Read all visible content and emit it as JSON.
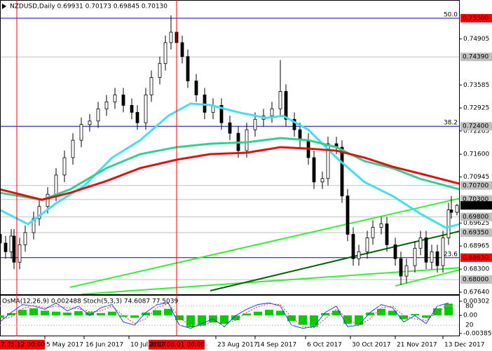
{
  "chart_data": [
    {
      "type": "candlestick",
      "title": "NZDUSD,Daily  0.69931 0.70173 0.69845 0.70130",
      "xlim": [
        0,
        164
      ],
      "ylim": [
        0.6758,
        0.76023
      ],
      "x": [
        0,
        2,
        4,
        5,
        7,
        9,
        12,
        14,
        17,
        20,
        23,
        26,
        29,
        32,
        35,
        38,
        41,
        44,
        47,
        49,
        52,
        54,
        57,
        59,
        61,
        63,
        65,
        67,
        70,
        73,
        76,
        79,
        82,
        85,
        88,
        91,
        94,
        97,
        100,
        102,
        105,
        107,
        110,
        112,
        115,
        117,
        120,
        122,
        124,
        126,
        128,
        131,
        133,
        136,
        138,
        141,
        143,
        145,
        148,
        150,
        152,
        154,
        156,
        158,
        160,
        161,
        163
      ],
      "open": [
        0.693,
        0.6905,
        0.688,
        0.6925,
        0.685,
        0.69,
        0.6935,
        0.6975,
        0.701,
        0.7045,
        0.71,
        0.715,
        0.72,
        0.7245,
        0.7255,
        0.729,
        0.731,
        0.733,
        0.73,
        0.728,
        0.725,
        0.733,
        0.738,
        0.742,
        0.748,
        0.751,
        0.748,
        0.744,
        0.737,
        0.733,
        0.728,
        0.73,
        0.725,
        0.722,
        0.717,
        0.723,
        0.726,
        0.727,
        0.729,
        0.734,
        0.726,
        0.723,
        0.72,
        0.715,
        0.708,
        0.709,
        0.719,
        0.718,
        0.704,
        0.693,
        0.686,
        0.688,
        0.692,
        0.695,
        0.696,
        0.69,
        0.686,
        0.681,
        0.684,
        0.689,
        0.692,
        0.685,
        0.688,
        0.684,
        0.692,
        0.7,
        0.69931
      ],
      "high": [
        0.695,
        0.6925,
        0.6945,
        0.6945,
        0.692,
        0.6955,
        0.6995,
        0.703,
        0.7065,
        0.712,
        0.717,
        0.722,
        0.7265,
        0.7275,
        0.731,
        0.733,
        0.735,
        0.735,
        0.732,
        0.73,
        0.735,
        0.74,
        0.744,
        0.75,
        0.7558,
        0.753,
        0.75,
        0.746,
        0.739,
        0.735,
        0.732,
        0.732,
        0.727,
        0.724,
        0.725,
        0.728,
        0.729,
        0.731,
        0.743,
        0.736,
        0.728,
        0.725,
        0.722,
        0.717,
        0.711,
        0.721,
        0.721,
        0.72,
        0.706,
        0.695,
        0.69,
        0.694,
        0.697,
        0.698,
        0.698,
        0.692,
        0.688,
        0.686,
        0.691,
        0.694,
        0.694,
        0.69,
        0.69,
        0.694,
        0.702,
        0.704,
        0.70173
      ],
      "low": [
        0.6885,
        0.686,
        0.686,
        0.683,
        0.683,
        0.688,
        0.6915,
        0.6955,
        0.699,
        0.7025,
        0.708,
        0.713,
        0.718,
        0.7225,
        0.7235,
        0.727,
        0.729,
        0.728,
        0.726,
        0.723,
        0.723,
        0.731,
        0.736,
        0.74,
        0.746,
        0.746,
        0.742,
        0.735,
        0.731,
        0.726,
        0.726,
        0.723,
        0.72,
        0.715,
        0.715,
        0.721,
        0.724,
        0.725,
        0.727,
        0.724,
        0.721,
        0.718,
        0.713,
        0.706,
        0.706,
        0.707,
        0.716,
        0.702,
        0.691,
        0.684,
        0.684,
        0.686,
        0.69,
        0.693,
        0.688,
        0.684,
        0.6785,
        0.679,
        0.682,
        0.687,
        0.683,
        0.683,
        0.682,
        0.682,
        0.69,
        0.6975,
        0.69845
      ],
      "close": [
        0.6905,
        0.688,
        0.6925,
        0.685,
        0.69,
        0.6935,
        0.6975,
        0.701,
        0.7045,
        0.71,
        0.715,
        0.72,
        0.7245,
        0.7255,
        0.729,
        0.731,
        0.733,
        0.73,
        0.728,
        0.725,
        0.733,
        0.738,
        0.742,
        0.748,
        0.751,
        0.748,
        0.744,
        0.737,
        0.733,
        0.728,
        0.73,
        0.725,
        0.722,
        0.717,
        0.723,
        0.726,
        0.727,
        0.729,
        0.734,
        0.726,
        0.723,
        0.72,
        0.715,
        0.708,
        0.709,
        0.719,
        0.718,
        0.704,
        0.693,
        0.686,
        0.688,
        0.692,
        0.695,
        0.696,
        0.69,
        0.686,
        0.681,
        0.684,
        0.689,
        0.692,
        0.685,
        0.688,
        0.684,
        0.692,
        0.7,
        0.6993,
        0.7013
      ],
      "candle_color": "#000000",
      "series": [
        {
          "color": "#40e0f0",
          "x": [
            0,
            10,
            20,
            30,
            40,
            50,
            60,
            68,
            75,
            85,
            95,
            101,
            110,
            120,
            130,
            140,
            150,
            159,
            164
          ],
          "values": [
            0.7,
            0.6959,
            0.7019,
            0.7069,
            0.715,
            0.72,
            0.727,
            0.7305,
            0.7301,
            0.728,
            0.7264,
            0.727,
            0.723,
            0.715,
            0.708,
            0.704,
            0.6989,
            0.6949,
            0.6959
          ]
        },
        {
          "color": "#30d090",
          "x": [
            0,
            15,
            25,
            38,
            50,
            63,
            75,
            88,
            100,
            110,
            120,
            130,
            140,
            150,
            164
          ],
          "values": [
            0.7049,
            0.7029,
            0.7059,
            0.712,
            0.716,
            0.718,
            0.719,
            0.7194,
            0.7206,
            0.72,
            0.718,
            0.714,
            0.712,
            0.7089,
            0.7059
          ]
        },
        {
          "color": "#e01010",
          "x": [
            0,
            15,
            25,
            38,
            50,
            63,
            75,
            88,
            100,
            110,
            120,
            130,
            140,
            150,
            164
          ],
          "values": [
            0.7059,
            0.7029,
            0.7049,
            0.7083,
            0.712,
            0.7144,
            0.716,
            0.7164,
            0.718,
            0.7176,
            0.717,
            0.715,
            0.7124,
            0.7104,
            0.7075
          ]
        }
      ],
      "trend_lines": [
        {
          "color": "#33ee33",
          "x": [
            25,
            164
          ],
          "values": [
            0.6778,
            0.7033
          ]
        },
        {
          "color": "#33ee33",
          "x": [
            141,
            164
          ],
          "values": [
            0.6782,
            0.6828
          ]
        },
        {
          "color": "#33ee33",
          "x": [
            29,
            164
          ],
          "values": [
            0.6758,
            0.6834
          ]
        },
        {
          "color": "#006400",
          "x": [
            75,
            164
          ],
          "values": [
            0.6768,
            0.6939
          ]
        }
      ],
      "levels": [
        {
          "value": 0.755,
          "label": "0.75500",
          "ratio": "50.0",
          "line": "#0000cc",
          "box": "#ff0000",
          "text": "#ffffff"
        },
        {
          "value": 0.7439,
          "label": "0.74390",
          "line": "#c0c0c0",
          "box": "#c0c0c0",
          "text": "#000000"
        },
        {
          "value": 0.724,
          "label": "0.72400",
          "ratio": "38.2",
          "line": "#0000cc",
          "box": "#c0c0c0",
          "text": "#000000"
        },
        {
          "value": 0.707,
          "label": "0.70700",
          "line": "#c0c0c0",
          "box": "#c0c0c0",
          "text": "#000000"
        },
        {
          "value": 0.703,
          "label": "0.70300",
          "line": "#c0c0c0",
          "box": "#c0c0c0",
          "text": "#000000"
        },
        {
          "value": 0.7013,
          "label": "0.70130",
          "box": "#000000",
          "text": "#ffffff"
        },
        {
          "value": 0.698,
          "label": "0.69800",
          "line": "#c0c0c0",
          "box": "#c0c0c0",
          "text": "#000000"
        },
        {
          "value": 0.6935,
          "label": "0.69350",
          "line": "#c0c0c0",
          "box": "#c0c0c0",
          "text": "#000000"
        },
        {
          "value": 0.6863,
          "label": "0.68630",
          "ratio": "23.6",
          "line": "#0000cc",
          "box": "#ff0000",
          "text": "#ffffff"
        },
        {
          "value": 0.68,
          "label": "0.68000",
          "line": "#c0c0c0",
          "box": "#c0c0c0",
          "text": "#000000"
        }
      ],
      "markers": [
        {
          "x": 6,
          "label": "2017.05.12 00:00",
          "color": "#ff0000"
        },
        {
          "x": 63,
          "label": "2017.08.01 00:00",
          "color": "#ff0000"
        }
      ],
      "yticks": [
        {
          "value": 0.74905,
          "label": "0.74905"
        },
        {
          "value": 0.73585,
          "label": "0.73585"
        },
        {
          "value": 0.72925,
          "label": "0.72925"
        },
        {
          "value": 0.72265,
          "label": "0.72265"
        },
        {
          "value": 0.716,
          "label": "0.71600"
        },
        {
          "value": 0.70945,
          "label": "0.70945"
        },
        {
          "value": 0.69625,
          "label": "0.69625"
        },
        {
          "value": 0.68965,
          "label": "0.68965"
        },
        {
          "value": 0.683,
          "label": "0.68300"
        },
        {
          "value": 0.6764,
          "label": "0.67640"
        }
      ],
      "xticks": [
        {
          "value": 16,
          "label": "5 May 2017"
        },
        {
          "value": 30,
          "label": "16 Jun 2017"
        },
        {
          "value": 46,
          "label": "10 Jul 2017"
        },
        {
          "value": 77,
          "label": "23 Aug 2017"
        },
        {
          "value": 91,
          "label": "14 Sep 2017"
        },
        {
          "value": 109,
          "label": "6 Oct 2017"
        },
        {
          "value": 125,
          "label": "30 Oct 2017"
        },
        {
          "value": 141,
          "label": "21 Nov 2017"
        },
        {
          "value": 158,
          "label": "13 Dec 2017"
        }
      ]
    },
    {
      "type": "oscillator",
      "title": "OsMA(12,26,9) 0.002488 Stoch(5,3,3) 74.6087 77.5039",
      "xlim": [
        0,
        164
      ],
      "ylim": [
        -0.0043,
        0.00421
      ],
      "y2lim": [
        -13,
        113
      ],
      "x": [
        0,
        4,
        8,
        12,
        16,
        20,
        24,
        28,
        32,
        36,
        40,
        44,
        48,
        52,
        56,
        60,
        64,
        68,
        72,
        76,
        80,
        84,
        88,
        92,
        96,
        100,
        104,
        108,
        112,
        116,
        120,
        124,
        128,
        132,
        136,
        140,
        144,
        148,
        152,
        156,
        160
      ],
      "series": [
        {
          "name": "OsMA",
          "color": "#00cc00",
          "values": [
            -0.0005,
            0.0005,
            0.0012,
            0.0015,
            0.001,
            0.0008,
            0.0006,
            0.0009,
            0.0007,
            0.0005,
            0.0008,
            -0.0003,
            -0.0005,
            0.0006,
            0.0011,
            0.0014,
            -0.001,
            -0.0025,
            -0.0022,
            -0.0015,
            -0.0018,
            -0.001,
            0.0004,
            0.0008,
            0.0012,
            0.001,
            -0.0012,
            -0.002,
            -0.0024,
            0.0005,
            0.001,
            -0.0018,
            -0.002,
            0.0006,
            0.0014,
            0.001,
            -0.0008,
            0.0003,
            -0.0005,
            0.0015,
            0.0025
          ]
        },
        {
          "name": "Stoch",
          "color": "#1e3cff",
          "axis": "y2",
          "values": [
            30,
            60,
            85,
            80,
            70,
            90,
            65,
            80,
            50,
            75,
            85,
            30,
            20,
            60,
            85,
            90,
            20,
            10,
            25,
            40,
            15,
            50,
            70,
            85,
            90,
            80,
            20,
            10,
            15,
            60,
            80,
            15,
            20,
            60,
            85,
            75,
            30,
            50,
            25,
            80,
            90
          ]
        },
        {
          "name": "Signal",
          "color": "#ff2020",
          "axis": "y2",
          "values": [
            40,
            45,
            72,
            82,
            75,
            80,
            75,
            72,
            62,
            65,
            80,
            50,
            25,
            40,
            75,
            88,
            45,
            15,
            18,
            32,
            25,
            35,
            60,
            78,
            88,
            85,
            45,
            15,
            12,
            40,
            70,
            40,
            18,
            40,
            75,
            80,
            50,
            40,
            35,
            60,
            85
          ]
        }
      ],
      "yticks": [
        {
          "value": 0.00302,
          "label": "0.00302"
        },
        {
          "value": 0,
          "label": "0.00"
        },
        {
          "value": -0.00385,
          "label": "-0.00385"
        }
      ],
      "y2ticks": [
        80,
        20
      ]
    }
  ]
}
